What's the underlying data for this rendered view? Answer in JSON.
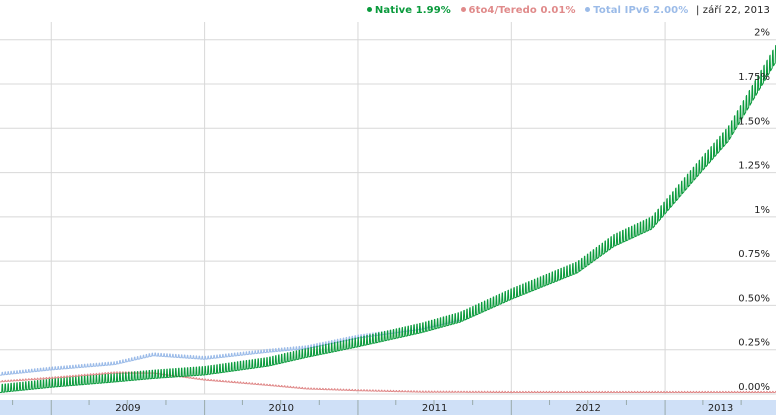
{
  "legend": {
    "native": "Native",
    "native_value": "1.99%",
    "teredo": "6to4/Teredo",
    "teredo_value": "0.01%",
    "total": "Total IPv6",
    "total_value": "2.00%",
    "date": "| září 22, 2013"
  },
  "colors": {
    "native": "#0a9a3c",
    "teredo": "#e08a8a",
    "total": "#9bbbe8",
    "grid": "#d8d8d8",
    "axis_band": "#cfe0f7"
  },
  "chart_data": {
    "type": "line",
    "x_range": [
      "2008-09-01",
      "2013-09-22"
    ],
    "ylim": [
      0,
      2.1
    ],
    "y_ticks": [
      {
        "value": 0,
        "label": "0.00%"
      },
      {
        "value": 0.25,
        "label": "0.25%"
      },
      {
        "value": 0.5,
        "label": "0.50%"
      },
      {
        "value": 0.75,
        "label": "0.75%"
      },
      {
        "value": 1,
        "label": "1%"
      },
      {
        "value": 1.25,
        "label": "1.25%"
      },
      {
        "value": 1.5,
        "label": "1.50%"
      },
      {
        "value": 1.75,
        "label": "1.75%"
      },
      {
        "value": 2,
        "label": "2%"
      }
    ],
    "x_ticks": [
      {
        "date": "2009-01-01",
        "label": "2009"
      },
      {
        "date": "2010-01-01",
        "label": "2010"
      },
      {
        "date": "2011-01-01",
        "label": "2011"
      },
      {
        "date": "2012-01-01",
        "label": "2012"
      },
      {
        "date": "2013-01-01",
        "label": "2013"
      }
    ],
    "series": [
      {
        "name": "Native",
        "color": "#0a9a3c",
        "points": [
          [
            "2008-09-01",
            0.02
          ],
          [
            "2009-01-01",
            0.05
          ],
          [
            "2009-06-01",
            0.08
          ],
          [
            "2009-09-01",
            0.1
          ],
          [
            "2010-01-01",
            0.12
          ],
          [
            "2010-06-01",
            0.17
          ],
          [
            "2010-09-01",
            0.22
          ],
          [
            "2011-01-01",
            0.28
          ],
          [
            "2011-06-01",
            0.36
          ],
          [
            "2011-09-01",
            0.42
          ],
          [
            "2012-01-01",
            0.55
          ],
          [
            "2012-06-06",
            0.7
          ],
          [
            "2012-09-01",
            0.85
          ],
          [
            "2012-12-01",
            0.95
          ],
          [
            "2013-03-01",
            1.2
          ],
          [
            "2013-06-01",
            1.45
          ],
          [
            "2013-09-22",
            1.9
          ]
        ],
        "weekly_amplitude": 0.055
      },
      {
        "name": "6to4/Teredo",
        "color": "#e08a8a",
        "points": [
          [
            "2008-09-01",
            0.07
          ],
          [
            "2009-01-01",
            0.09
          ],
          [
            "2009-06-01",
            0.12
          ],
          [
            "2009-09-01",
            0.12
          ],
          [
            "2010-01-01",
            0.08
          ],
          [
            "2010-06-01",
            0.05
          ],
          [
            "2010-09-01",
            0.03
          ],
          [
            "2011-01-01",
            0.02
          ],
          [
            "2011-06-01",
            0.012
          ],
          [
            "2012-01-01",
            0.01
          ],
          [
            "2013-09-22",
            0.01
          ]
        ],
        "weekly_amplitude": 0.008
      },
      {
        "name": "Total IPv6",
        "color": "#9bbbe8",
        "points": [
          [
            "2008-09-01",
            0.11
          ],
          [
            "2009-01-01",
            0.14
          ],
          [
            "2009-06-01",
            0.17
          ],
          [
            "2009-09-01",
            0.22
          ],
          [
            "2010-01-01",
            0.2
          ],
          [
            "2010-06-01",
            0.24
          ],
          [
            "2010-09-01",
            0.26
          ],
          [
            "2011-01-01",
            0.32
          ],
          [
            "2011-06-01",
            0.37
          ],
          [
            "2011-09-01",
            0.42
          ]
        ],
        "weekly_amplitude": 0.018
      }
    ]
  }
}
